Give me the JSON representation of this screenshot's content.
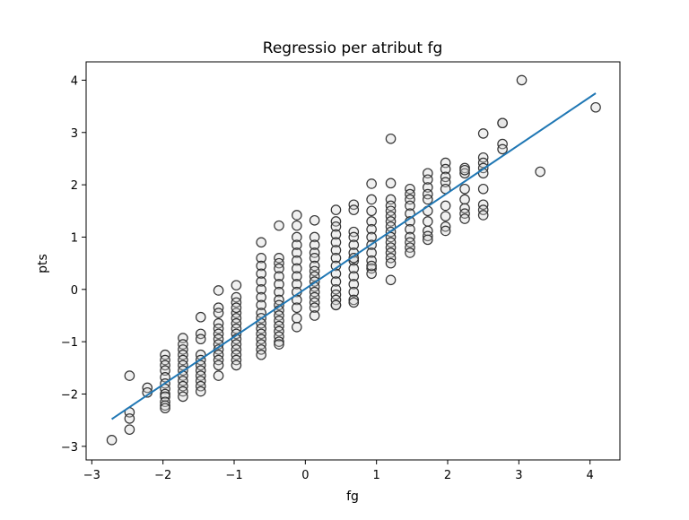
{
  "chart_data": {
    "type": "scatter",
    "title": "Regressio per atribut fg",
    "xlabel": "fg",
    "ylabel": "pts",
    "xlim": [
      -3.08,
      4.42
    ],
    "ylim": [
      -3.26,
      4.35
    ],
    "xticks": [
      -3,
      -2,
      -1,
      0,
      1,
      2,
      3,
      4
    ],
    "yticks": [
      -3,
      -2,
      -1,
      0,
      1,
      2,
      3,
      4
    ],
    "xtick_labels": [
      "−3",
      "−2",
      "−1",
      "0",
      "1",
      "2",
      "3",
      "4"
    ],
    "ytick_labels": [
      "−3",
      "−2",
      "−1",
      "0",
      "1",
      "2",
      "3",
      "4"
    ],
    "grid": false,
    "legend": "none",
    "colors": {
      "marker_edge": "#333333",
      "marker_face": "#d3d3d3",
      "line": "#1f77b4"
    },
    "series": [
      {
        "type": "scatter",
        "x": [
          -2.72,
          -2.47,
          -2.47,
          -2.47,
          -2.47,
          -2.22,
          -2.22,
          -1.97,
          -1.97,
          -1.97,
          -1.97,
          -1.97,
          -1.97,
          -1.97,
          -1.97,
          -1.97,
          -1.97,
          -1.97,
          -1.97,
          -1.72,
          -1.72,
          -1.72,
          -1.72,
          -1.72,
          -1.72,
          -1.72,
          -1.72,
          -1.72,
          -1.72,
          -1.72,
          -1.72,
          -1.47,
          -1.47,
          -1.47,
          -1.47,
          -1.47,
          -1.47,
          -1.47,
          -1.47,
          -1.47,
          -1.47,
          -1.47,
          -1.22,
          -1.22,
          -1.22,
          -1.22,
          -1.22,
          -1.22,
          -1.22,
          -1.22,
          -1.22,
          -1.22,
          -1.22,
          -1.22,
          -1.22,
          -0.97,
          -0.97,
          -0.97,
          -0.97,
          -0.97,
          -0.97,
          -0.97,
          -0.97,
          -0.97,
          -0.97,
          -0.97,
          -0.97,
          -0.97,
          -0.97,
          -0.97,
          -0.62,
          -0.62,
          -0.62,
          -0.62,
          -0.62,
          -0.62,
          -0.62,
          -0.62,
          -0.62,
          -0.62,
          -0.62,
          -0.62,
          -0.62,
          -0.62,
          -0.62,
          -0.62,
          -0.62,
          -0.37,
          -0.37,
          -0.37,
          -0.37,
          -0.37,
          -0.37,
          -0.37,
          -0.37,
          -0.37,
          -0.37,
          -0.37,
          -0.37,
          -0.37,
          -0.37,
          -0.37,
          -0.37,
          -0.37,
          -0.12,
          -0.12,
          -0.12,
          -0.12,
          -0.12,
          -0.12,
          -0.12,
          -0.12,
          -0.12,
          -0.12,
          -0.12,
          -0.12,
          -0.12,
          -0.12,
          0.13,
          0.13,
          0.13,
          0.13,
          0.13,
          0.13,
          0.13,
          0.13,
          0.13,
          0.13,
          0.13,
          0.13,
          0.13,
          0.13,
          0.13,
          0.43,
          0.43,
          0.43,
          0.43,
          0.43,
          0.43,
          0.43,
          0.43,
          0.43,
          0.43,
          0.43,
          0.43,
          0.43,
          0.43,
          0.43,
          0.68,
          0.68,
          0.68,
          0.68,
          0.68,
          0.68,
          0.68,
          0.68,
          0.68,
          0.68,
          0.68,
          0.68,
          0.68,
          0.68,
          0.93,
          0.93,
          0.93,
          0.93,
          0.93,
          0.93,
          0.93,
          0.93,
          0.93,
          0.93,
          0.93,
          0.93,
          1.2,
          1.2,
          1.2,
          1.2,
          1.2,
          1.2,
          1.2,
          1.2,
          1.2,
          1.2,
          1.2,
          1.2,
          1.2,
          1.2,
          1.2,
          1.2,
          1.47,
          1.47,
          1.47,
          1.47,
          1.47,
          1.47,
          1.47,
          1.47,
          1.47,
          1.47,
          1.47,
          1.72,
          1.72,
          1.72,
          1.72,
          1.72,
          1.72,
          1.72,
          1.72,
          1.72,
          1.72,
          1.97,
          1.97,
          1.97,
          1.97,
          1.97,
          1.97,
          1.97,
          1.97,
          1.97,
          2.24,
          2.24,
          2.24,
          2.24,
          2.24,
          2.24,
          2.24,
          2.24,
          2.5,
          2.5,
          2.5,
          2.5,
          2.5,
          2.5,
          2.5,
          2.5,
          2.5,
          2.77,
          2.77,
          2.77,
          2.77,
          3.04,
          3.3,
          4.08
        ],
        "y": [
          -2.88,
          -1.65,
          -2.35,
          -2.47,
          -2.68,
          -1.88,
          -1.97,
          -1.25,
          -1.35,
          -1.45,
          -1.55,
          -1.68,
          -1.8,
          -1.9,
          -2.0,
          -2.05,
          -2.15,
          -2.22,
          -2.27,
          -0.93,
          -1.05,
          -1.15,
          -1.25,
          -1.35,
          -1.45,
          -1.55,
          -1.65,
          -1.75,
          -1.85,
          -1.95,
          -2.05,
          -0.53,
          -0.85,
          -0.95,
          -1.25,
          -1.35,
          -1.45,
          -1.55,
          -1.65,
          -1.75,
          -1.85,
          -1.95,
          -0.02,
          -0.35,
          -0.45,
          -0.65,
          -0.75,
          -0.85,
          -0.95,
          -1.05,
          -1.15,
          -1.25,
          -1.35,
          -1.45,
          -1.65,
          0.08,
          -0.15,
          -0.25,
          -0.45,
          -0.55,
          -0.65,
          -0.75,
          -0.85,
          -0.95,
          -1.05,
          -1.15,
          -1.25,
          -1.35,
          -1.45,
          -0.35,
          0.9,
          0.6,
          0.45,
          0.3,
          0.15,
          0.0,
          -0.15,
          -0.3,
          -0.45,
          -0.55,
          -0.65,
          -0.75,
          -0.85,
          -0.95,
          -1.05,
          -1.15,
          -1.25,
          1.22,
          0.6,
          0.5,
          0.4,
          0.25,
          0.1,
          -0.05,
          -0.2,
          -0.3,
          -0.4,
          -0.5,
          -0.6,
          -0.7,
          -0.8,
          -0.9,
          -1.0,
          -1.05,
          1.42,
          1.22,
          1.0,
          0.85,
          0.7,
          0.55,
          0.4,
          0.25,
          0.1,
          -0.05,
          -0.2,
          -0.35,
          -0.55,
          -0.72,
          1.32,
          1.0,
          0.85,
          0.7,
          0.6,
          0.45,
          0.35,
          0.25,
          0.15,
          0.05,
          -0.05,
          -0.15,
          -0.25,
          -0.35,
          -0.5,
          1.52,
          1.3,
          1.2,
          1.05,
          0.9,
          0.75,
          0.6,
          0.45,
          0.3,
          0.15,
          0.0,
          -0.1,
          -0.2,
          -0.3,
          -0.3,
          1.62,
          1.52,
          1.1,
          1.0,
          0.85,
          0.7,
          0.55,
          0.4,
          0.25,
          0.1,
          -0.05,
          -0.2,
          -0.25,
          0.6,
          2.02,
          1.72,
          1.5,
          1.3,
          1.15,
          1.0,
          0.85,
          0.7,
          0.55,
          0.4,
          0.3,
          0.45,
          2.88,
          2.03,
          1.72,
          1.6,
          1.5,
          1.4,
          1.3,
          1.2,
          1.1,
          1.0,
          0.9,
          0.8,
          0.7,
          0.6,
          0.5,
          0.18,
          1.92,
          1.82,
          1.72,
          1.6,
          1.45,
          1.3,
          1.15,
          1.0,
          0.9,
          0.8,
          0.7,
          2.22,
          2.1,
          1.95,
          1.82,
          1.72,
          1.5,
          1.3,
          1.12,
          1.02,
          0.95,
          2.42,
          2.3,
          2.15,
          2.05,
          1.92,
          1.6,
          1.4,
          1.2,
          1.12,
          2.32,
          2.22,
          1.92,
          1.72,
          1.55,
          1.45,
          1.35,
          2.28,
          2.98,
          2.52,
          2.42,
          2.32,
          2.22,
          1.92,
          1.62,
          1.52,
          1.42,
          3.18,
          3.18,
          2.78,
          2.68,
          4.0,
          2.25,
          3.48
        ]
      },
      {
        "type": "line",
        "x": [
          -2.72,
          4.08
        ],
        "y": [
          -2.48,
          3.75
        ]
      }
    ]
  }
}
